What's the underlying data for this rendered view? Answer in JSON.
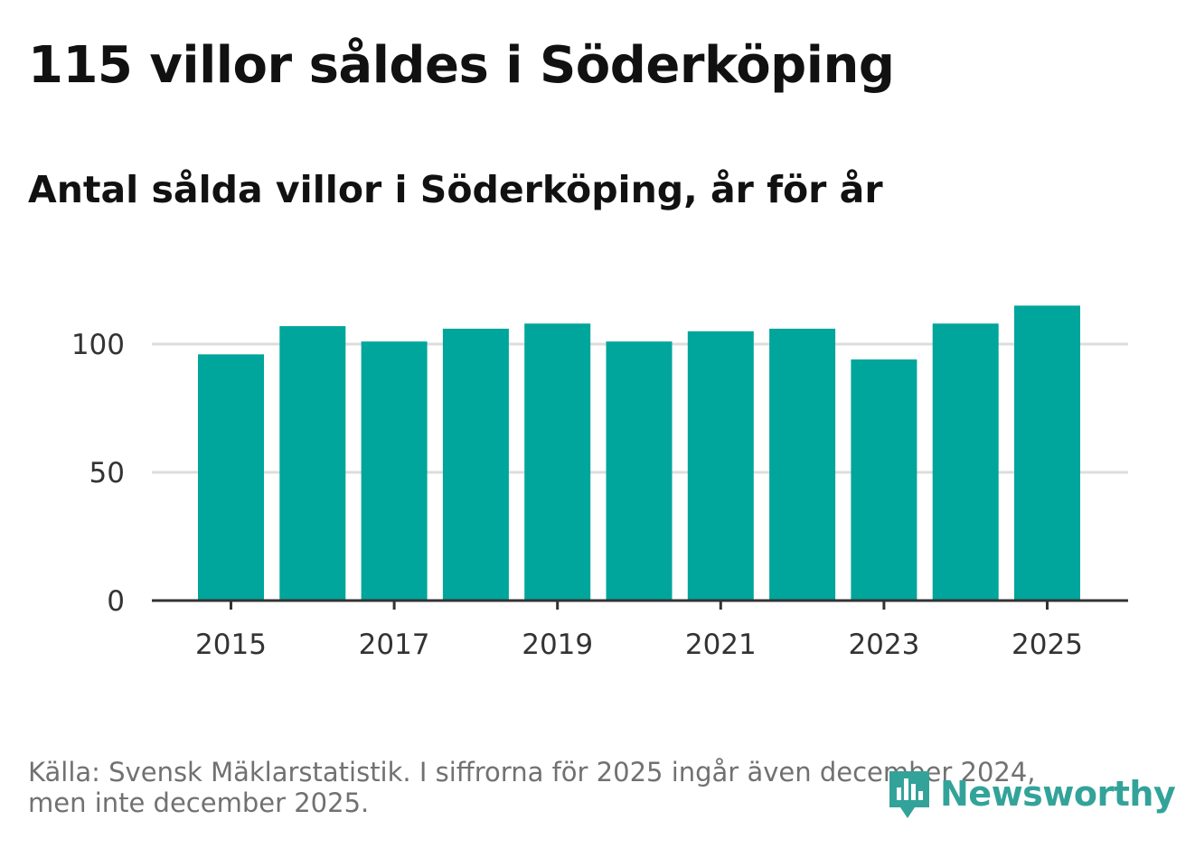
{
  "title": "115 villor såldes i Söderköping",
  "subtitle": "Antal sålda villor i Söderköping, år för år",
  "source_line1": "Källa: Svensk Mäklarstatistik. I siffrorna för 2025 ingår även december 2024,",
  "source_line2": "men inte december 2025.",
  "logo_text": "Newsworthy",
  "colors": {
    "bar": "#00a59b",
    "grid": "#dddddd",
    "axis": "#333333",
    "logo": "#33a39a"
  },
  "chart_data": {
    "type": "bar",
    "title": "Antal sålda villor i Söderköping, år för år",
    "xlabel": "",
    "ylabel": "",
    "categories": [
      "2015",
      "2016",
      "2017",
      "2018",
      "2019",
      "2020",
      "2021",
      "2022",
      "2023",
      "2024",
      "2025"
    ],
    "values": [
      96,
      107,
      101,
      106,
      108,
      101,
      105,
      106,
      94,
      108,
      115
    ],
    "ylim": [
      0,
      115
    ],
    "yticks": [
      0,
      50,
      100
    ],
    "xticks": [
      "2015",
      "2017",
      "2019",
      "2021",
      "2023",
      "2025"
    ],
    "grid": true
  }
}
